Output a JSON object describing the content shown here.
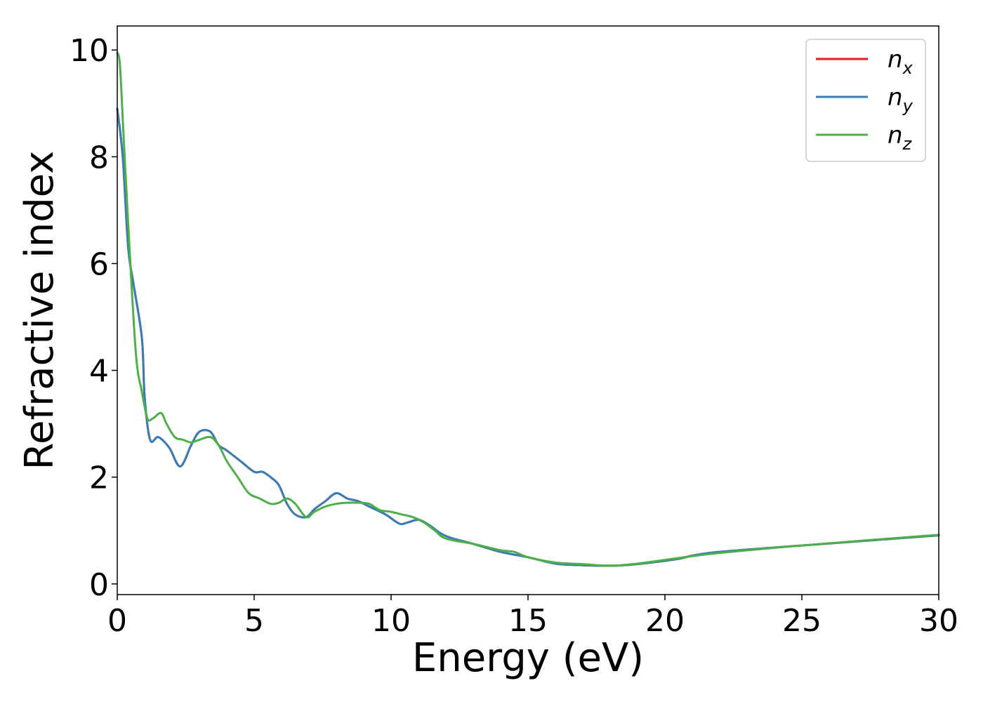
{
  "chart_data": {
    "type": "line",
    "xlabel": "Energy (eV)",
    "ylabel": "Refractive index",
    "xlim": [
      0,
      30
    ],
    "ylim": [
      -0.2,
      10.45
    ],
    "xticks": [
      0,
      5,
      10,
      15,
      20,
      25,
      30
    ],
    "xtick_labels": [
      "0",
      "5",
      "10",
      "15",
      "20",
      "25",
      "30"
    ],
    "yticks": [
      0,
      2,
      4,
      6,
      8,
      10
    ],
    "ytick_labels": [
      "0",
      "2",
      "4",
      "6",
      "8",
      "10"
    ],
    "grid": false,
    "legend_position": "top-right",
    "series": [
      {
        "name": "n_x",
        "label_main": "n",
        "label_sub": "x",
        "color": "#e41a1c",
        "x": [
          0,
          0.2,
          0.4,
          0.6,
          0.9,
          1.0,
          1.2,
          1.5,
          1.9,
          2.3,
          2.7,
          3.0,
          3.4,
          3.7,
          4.0,
          4.5,
          5.0,
          5.3,
          5.6,
          5.9,
          6.2,
          6.5,
          6.9,
          7.2,
          7.6,
          8.0,
          8.4,
          8.8,
          9.2,
          9.8,
          10.3,
          10.6,
          11.0,
          11.4,
          11.8,
          12.2,
          13.0,
          14.0,
          15.0,
          16.0,
          17.0,
          17.9,
          18.5,
          19.5,
          20.5,
          21.0,
          22.0,
          25.0,
          30.0
        ],
        "y": [
          8.9,
          8.0,
          6.3,
          5.6,
          4.6,
          3.5,
          2.7,
          2.75,
          2.55,
          2.2,
          2.6,
          2.85,
          2.85,
          2.6,
          2.5,
          2.3,
          2.1,
          2.1,
          2.0,
          1.85,
          1.5,
          1.3,
          1.25,
          1.4,
          1.55,
          1.7,
          1.6,
          1.55,
          1.45,
          1.3,
          1.13,
          1.15,
          1.2,
          1.1,
          0.95,
          0.86,
          0.75,
          0.6,
          0.5,
          0.38,
          0.35,
          0.34,
          0.35,
          0.4,
          0.47,
          0.53,
          0.6,
          0.72,
          0.91
        ]
      },
      {
        "name": "n_y",
        "label_main": "n",
        "label_sub": "y",
        "color": "#377eb8",
        "x": [
          0,
          0.2,
          0.4,
          0.6,
          0.9,
          1.0,
          1.2,
          1.5,
          1.9,
          2.3,
          2.7,
          3.0,
          3.4,
          3.7,
          4.0,
          4.5,
          5.0,
          5.3,
          5.6,
          5.9,
          6.2,
          6.5,
          6.9,
          7.2,
          7.6,
          8.0,
          8.4,
          8.8,
          9.2,
          9.8,
          10.3,
          10.6,
          11.0,
          11.4,
          11.8,
          12.2,
          13.0,
          14.0,
          15.0,
          16.0,
          17.0,
          17.9,
          18.5,
          19.5,
          20.5,
          21.0,
          22.0,
          25.0,
          30.0
        ],
        "y": [
          8.9,
          8.0,
          6.3,
          5.6,
          4.6,
          3.5,
          2.7,
          2.75,
          2.55,
          2.2,
          2.6,
          2.85,
          2.85,
          2.6,
          2.5,
          2.3,
          2.1,
          2.1,
          2.0,
          1.85,
          1.5,
          1.3,
          1.25,
          1.4,
          1.55,
          1.7,
          1.6,
          1.55,
          1.45,
          1.3,
          1.13,
          1.15,
          1.2,
          1.1,
          0.95,
          0.86,
          0.75,
          0.6,
          0.5,
          0.38,
          0.35,
          0.34,
          0.35,
          0.4,
          0.47,
          0.53,
          0.6,
          0.72,
          0.91
        ]
      },
      {
        "name": "n_z",
        "label_main": "n",
        "label_sub": "z",
        "color": "#4daf4a",
        "x": [
          0,
          0.1,
          0.25,
          0.5,
          0.7,
          0.9,
          1.1,
          1.3,
          1.6,
          1.8,
          2.1,
          2.4,
          2.7,
          3.0,
          3.4,
          3.7,
          4.0,
          4.4,
          4.8,
          5.2,
          5.6,
          5.9,
          6.2,
          6.5,
          6.9,
          7.2,
          7.6,
          8.0,
          8.4,
          8.8,
          9.2,
          9.6,
          10.0,
          10.4,
          10.8,
          11.2,
          11.6,
          12.0,
          13.0,
          14.0,
          14.5,
          15.0,
          16.0,
          17.0,
          18.0,
          19.0,
          20.0,
          21.0,
          22.0,
          25.0,
          30.0
        ],
        "y": [
          9.95,
          9.7,
          8.2,
          5.8,
          4.2,
          3.6,
          3.1,
          3.1,
          3.2,
          3.0,
          2.75,
          2.7,
          2.65,
          2.7,
          2.75,
          2.6,
          2.3,
          2.0,
          1.7,
          1.6,
          1.5,
          1.52,
          1.6,
          1.5,
          1.25,
          1.35,
          1.45,
          1.5,
          1.52,
          1.52,
          1.5,
          1.38,
          1.35,
          1.3,
          1.25,
          1.15,
          1.0,
          0.85,
          0.75,
          0.63,
          0.6,
          0.5,
          0.4,
          0.37,
          0.34,
          0.38,
          0.45,
          0.52,
          0.58,
          0.72,
          0.92
        ]
      }
    ]
  }
}
